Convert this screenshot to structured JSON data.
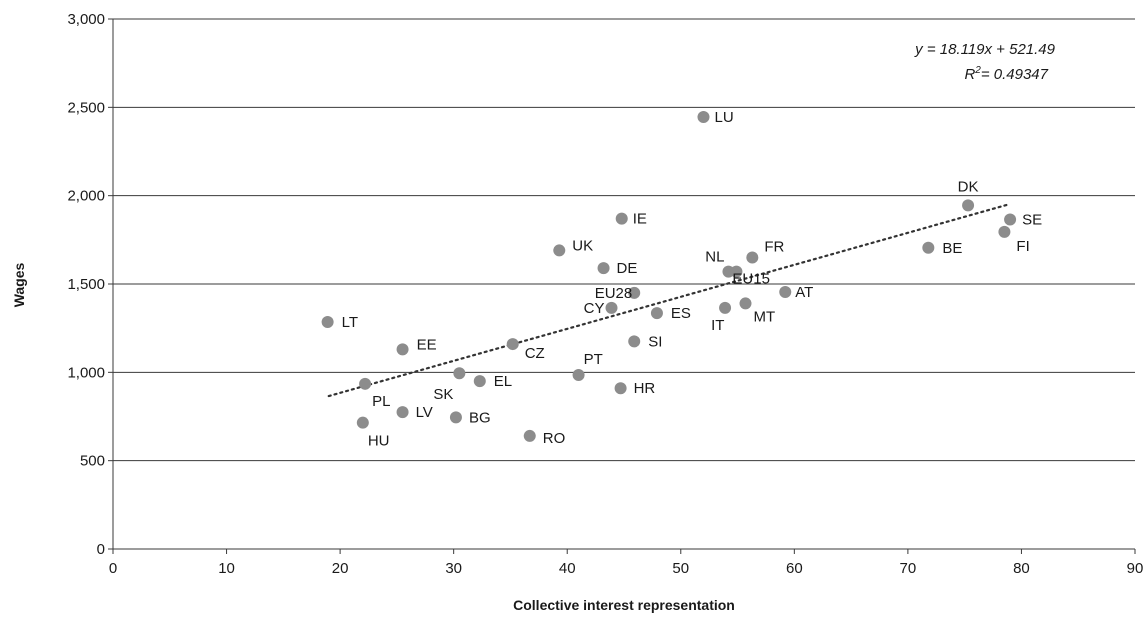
{
  "chart_data": {
    "type": "scatter",
    "xlabel": "Collective interest representation",
    "ylabel": "Wages",
    "xlim": [
      0,
      90
    ],
    "ylim": [
      0,
      3000
    ],
    "x_ticks": [
      "0",
      "10",
      "20",
      "30",
      "40",
      "50",
      "60",
      "70",
      "80",
      "90"
    ],
    "y_ticks": [
      "0",
      "500",
      "1,000",
      "1,500",
      "2,000",
      "2,500",
      "3,000"
    ],
    "grid": "horizontal",
    "marker_color": "#8c8c8c",
    "trend_color": "#333333",
    "points": [
      {
        "label": "LU",
        "x": 52.0,
        "y": 2445
      },
      {
        "label": "DK",
        "x": 75.3,
        "y": 1945
      },
      {
        "label": "SE",
        "x": 79.0,
        "y": 1865
      },
      {
        "label": "FI",
        "x": 78.5,
        "y": 1795
      },
      {
        "label": "BE",
        "x": 71.8,
        "y": 1705
      },
      {
        "label": "IE",
        "x": 44.8,
        "y": 1870
      },
      {
        "label": "UK",
        "x": 39.3,
        "y": 1690
      },
      {
        "label": "DE",
        "x": 43.2,
        "y": 1590
      },
      {
        "label": "FR",
        "x": 56.3,
        "y": 1650
      },
      {
        "label": "NL",
        "x": 54.2,
        "y": 1570
      },
      {
        "label": "EU15",
        "x": 54.9,
        "y": 1570
      },
      {
        "label": "EU28",
        "x": 45.9,
        "y": 1450
      },
      {
        "label": "AT",
        "x": 59.2,
        "y": 1455
      },
      {
        "label": "MT",
        "x": 55.7,
        "y": 1390
      },
      {
        "label": "IT",
        "x": 53.9,
        "y": 1365
      },
      {
        "label": "CY",
        "x": 43.9,
        "y": 1365
      },
      {
        "label": "ES",
        "x": 47.9,
        "y": 1335
      },
      {
        "label": "LT",
        "x": 18.9,
        "y": 1285
      },
      {
        "label": "SI",
        "x": 45.9,
        "y": 1175
      },
      {
        "label": "CZ",
        "x": 35.2,
        "y": 1160
      },
      {
        "label": "EE",
        "x": 25.5,
        "y": 1130
      },
      {
        "label": "SK",
        "x": 30.5,
        "y": 995
      },
      {
        "label": "PT",
        "x": 41.0,
        "y": 985
      },
      {
        "label": "EL",
        "x": 32.3,
        "y": 950
      },
      {
        "label": "PL",
        "x": 22.2,
        "y": 935
      },
      {
        "label": "HR",
        "x": 44.7,
        "y": 910
      },
      {
        "label": "LV",
        "x": 25.5,
        "y": 775
      },
      {
        "label": "BG",
        "x": 30.2,
        "y": 745
      },
      {
        "label": "HU",
        "x": 22.0,
        "y": 715
      },
      {
        "label": "RO",
        "x": 36.7,
        "y": 640
      }
    ],
    "trendline": {
      "type": "linear",
      "slope": 18.119,
      "intercept": 521.49,
      "x_range": [
        19,
        79
      ],
      "equation": "y = 18.119x + 521.49",
      "r2_prefix": "R",
      "r2_sup": "2",
      "r2_value": "= 0.49347"
    }
  }
}
